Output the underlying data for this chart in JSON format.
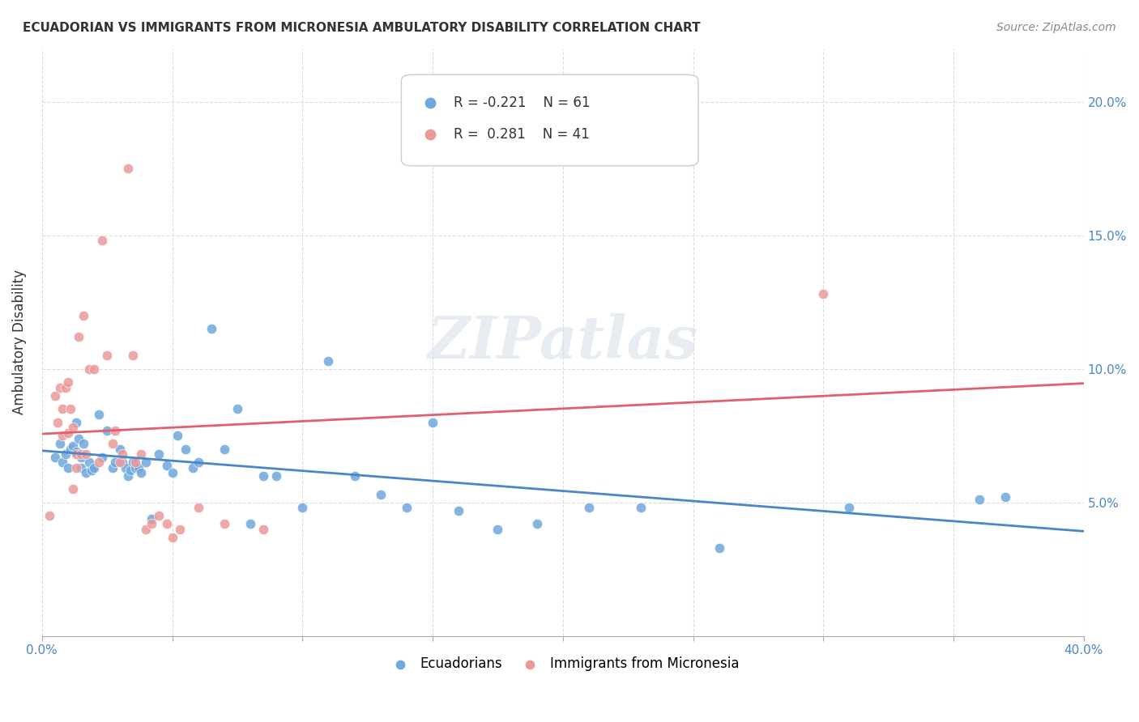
{
  "title": "ECUADORIAN VS IMMIGRANTS FROM MICRONESIA AMBULATORY DISABILITY CORRELATION CHART",
  "source": "Source: ZipAtlas.com",
  "ylabel": "Ambulatory Disability",
  "xlim": [
    0.0,
    0.4
  ],
  "ylim": [
    0.0,
    0.22
  ],
  "yticks": [
    0.05,
    0.1,
    0.15,
    0.2
  ],
  "ytick_labels": [
    "5.0%",
    "10.0%",
    "15.0%",
    "20.0%"
  ],
  "xticks": [
    0.0,
    0.05,
    0.1,
    0.15,
    0.2,
    0.25,
    0.3,
    0.35,
    0.4
  ],
  "watermark": "ZIPatlas",
  "blue_color": "#6fa8dc",
  "pink_color": "#ea9999",
  "blue_line_color": "#4a86c8",
  "pink_line_color": "#e06070",
  "legend_R_blue": "-0.221",
  "legend_N_blue": "61",
  "legend_R_pink": "0.281",
  "legend_N_pink": "41",
  "blue_scatter_x": [
    0.005,
    0.007,
    0.008,
    0.009,
    0.01,
    0.011,
    0.012,
    0.013,
    0.013,
    0.014,
    0.015,
    0.015,
    0.016,
    0.017,
    0.018,
    0.019,
    0.02,
    0.022,
    0.023,
    0.025,
    0.027,
    0.028,
    0.03,
    0.031,
    0.032,
    0.033,
    0.034,
    0.035,
    0.036,
    0.037,
    0.038,
    0.04,
    0.042,
    0.045,
    0.048,
    0.05,
    0.052,
    0.055,
    0.058,
    0.06,
    0.065,
    0.07,
    0.075,
    0.08,
    0.085,
    0.09,
    0.1,
    0.11,
    0.12,
    0.13,
    0.14,
    0.15,
    0.16,
    0.175,
    0.19,
    0.21,
    0.23,
    0.26,
    0.31,
    0.36,
    0.37
  ],
  "blue_scatter_y": [
    0.067,
    0.072,
    0.065,
    0.068,
    0.063,
    0.07,
    0.071,
    0.069,
    0.08,
    0.074,
    0.063,
    0.067,
    0.072,
    0.061,
    0.065,
    0.062,
    0.063,
    0.083,
    0.067,
    0.077,
    0.063,
    0.065,
    0.07,
    0.065,
    0.063,
    0.06,
    0.062,
    0.065,
    0.063,
    0.063,
    0.061,
    0.065,
    0.044,
    0.068,
    0.064,
    0.061,
    0.075,
    0.07,
    0.063,
    0.065,
    0.115,
    0.07,
    0.085,
    0.042,
    0.06,
    0.06,
    0.048,
    0.103,
    0.06,
    0.053,
    0.048,
    0.08,
    0.047,
    0.04,
    0.042,
    0.048,
    0.048,
    0.033,
    0.048,
    0.051,
    0.052
  ],
  "pink_scatter_x": [
    0.003,
    0.005,
    0.006,
    0.007,
    0.008,
    0.008,
    0.009,
    0.01,
    0.01,
    0.011,
    0.012,
    0.012,
    0.013,
    0.013,
    0.014,
    0.015,
    0.016,
    0.017,
    0.018,
    0.02,
    0.022,
    0.023,
    0.025,
    0.027,
    0.028,
    0.03,
    0.031,
    0.033,
    0.035,
    0.036,
    0.038,
    0.04,
    0.042,
    0.045,
    0.048,
    0.05,
    0.053,
    0.06,
    0.07,
    0.085,
    0.3
  ],
  "pink_scatter_y": [
    0.045,
    0.09,
    0.08,
    0.093,
    0.075,
    0.085,
    0.093,
    0.095,
    0.076,
    0.085,
    0.055,
    0.078,
    0.068,
    0.063,
    0.112,
    0.068,
    0.12,
    0.068,
    0.1,
    0.1,
    0.065,
    0.148,
    0.105,
    0.072,
    0.077,
    0.065,
    0.068,
    0.175,
    0.105,
    0.065,
    0.068,
    0.04,
    0.042,
    0.045,
    0.042,
    0.037,
    0.04,
    0.048,
    0.042,
    0.04,
    0.128
  ],
  "background_color": "#ffffff",
  "grid_color": "#dddddd"
}
